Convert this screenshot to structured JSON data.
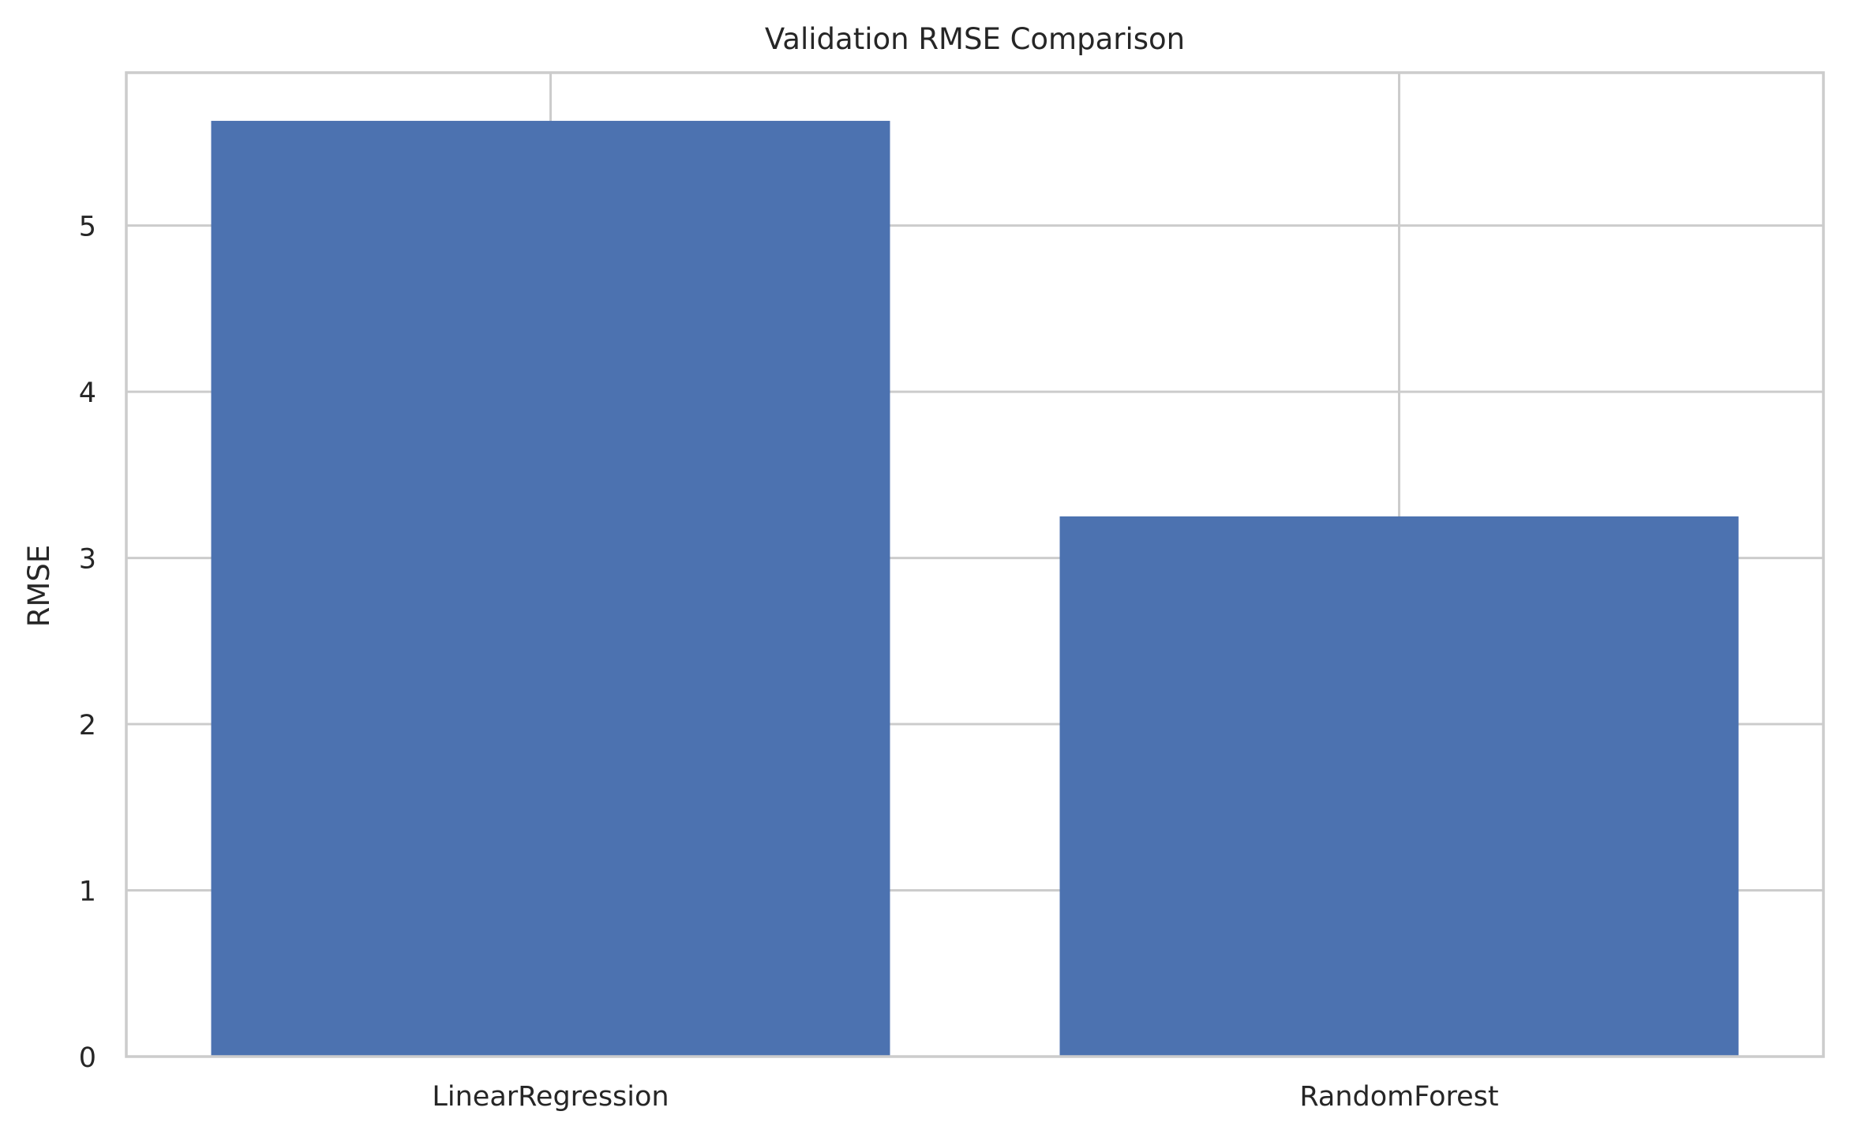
{
  "chart_data": {
    "type": "bar",
    "title": "Validation RMSE Comparison",
    "xlabel": "",
    "ylabel": "RMSE",
    "categories": [
      "LinearRegression",
      "RandomForest"
    ],
    "values": [
      5.63,
      3.25
    ],
    "ylim": [
      0,
      5.92
    ],
    "yticks": [
      0,
      1,
      2,
      3,
      4,
      5
    ],
    "ytick_labels": [
      "0",
      "1",
      "2",
      "3",
      "4",
      "5"
    ],
    "grid": true,
    "legend": "none",
    "colors": {
      "bar": "#4c72b0",
      "grid": "#cccccc",
      "spine": "#cccccc",
      "text": "#262626",
      "background": "#ffffff"
    }
  }
}
